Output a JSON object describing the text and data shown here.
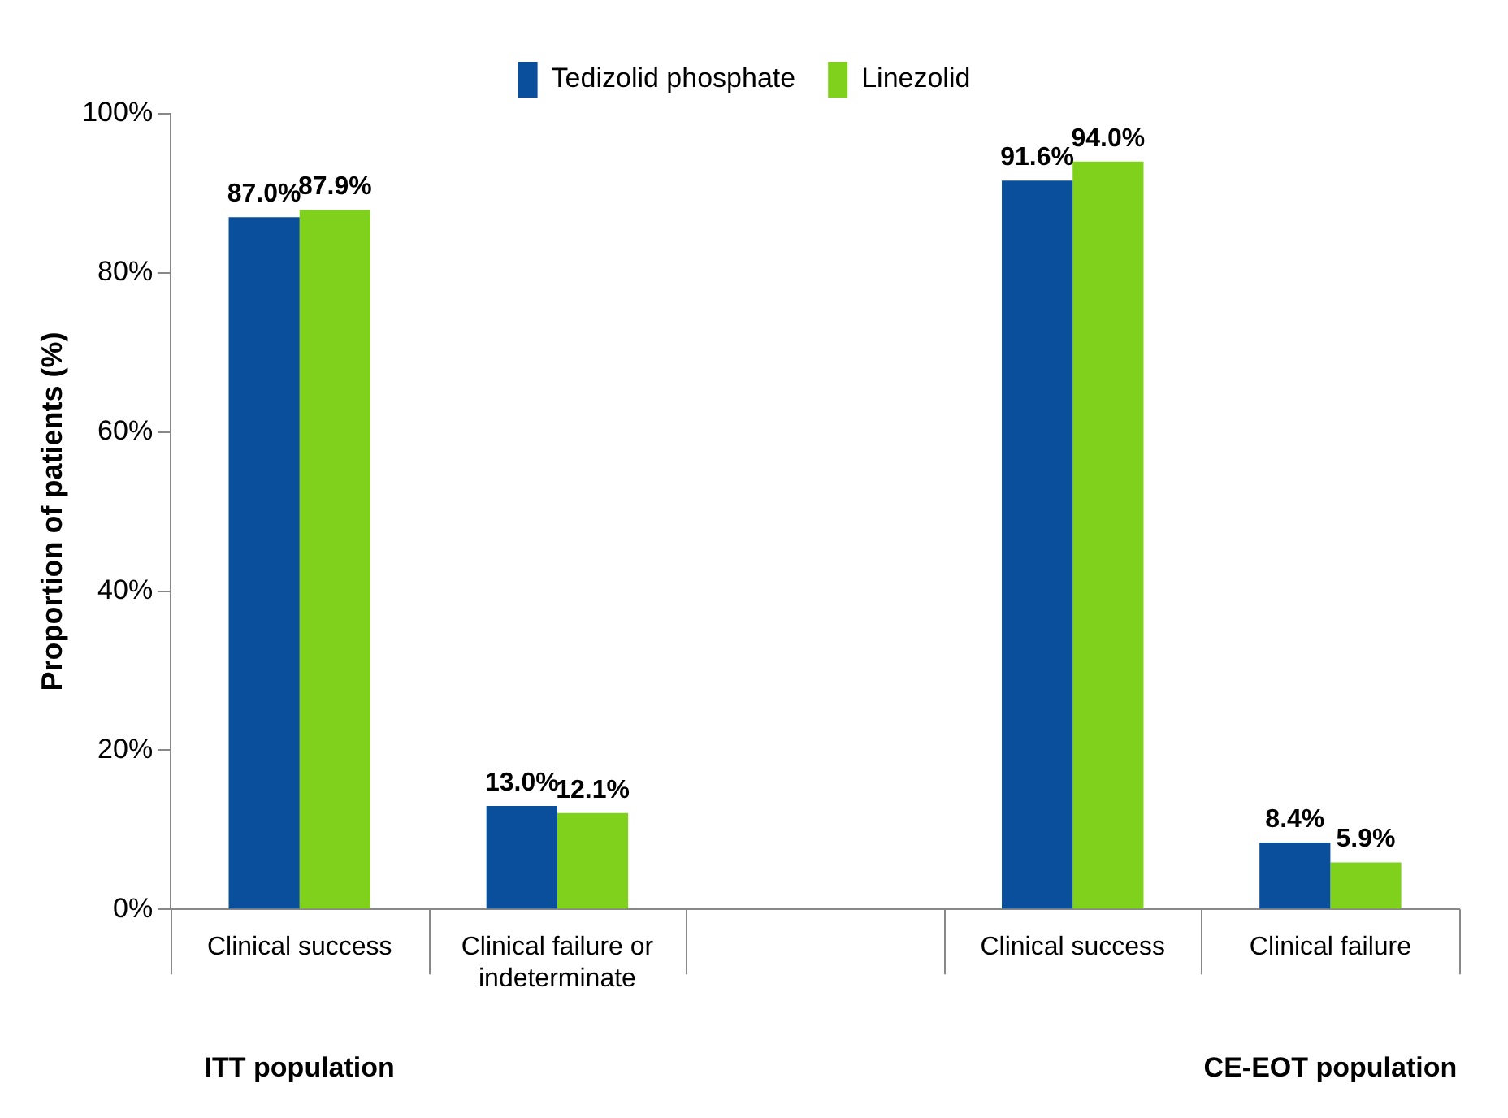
{
  "chart_data": {
    "type": "bar",
    "ylabel": "Proportion of patients (%)",
    "categories": [
      "Clinical success",
      "Clinical failure or indeterminate",
      null,
      "Clinical success",
      "Clinical failure"
    ],
    "series": [
      {
        "name": "Tedizolid phosphate",
        "color": "#0a4f9c",
        "values": [
          87.0,
          13.0,
          null,
          91.6,
          8.4
        ],
        "value_labels": [
          "87.0%",
          "13.0%",
          null,
          "91.6%",
          "8.4%"
        ]
      },
      {
        "name": "Linezolid",
        "color": "#7fd11b",
        "values": [
          87.9,
          12.1,
          null,
          94.0,
          5.9
        ],
        "value_labels": [
          "87.9%",
          "12.1%",
          null,
          "94.0%",
          "5.9%"
        ]
      }
    ],
    "ylim": [
      0,
      100
    ],
    "yticks": [
      {
        "value": 0,
        "label": "0%"
      },
      {
        "value": 20,
        "label": "20%"
      },
      {
        "value": 40,
        "label": "40%"
      },
      {
        "value": 60,
        "label": "60%"
      },
      {
        "value": 80,
        "label": "80%"
      },
      {
        "value": 100,
        "label": "100%"
      }
    ],
    "grid": false,
    "legend": "top",
    "annotations": [
      "ITT population",
      "CE-EOT population"
    ]
  }
}
